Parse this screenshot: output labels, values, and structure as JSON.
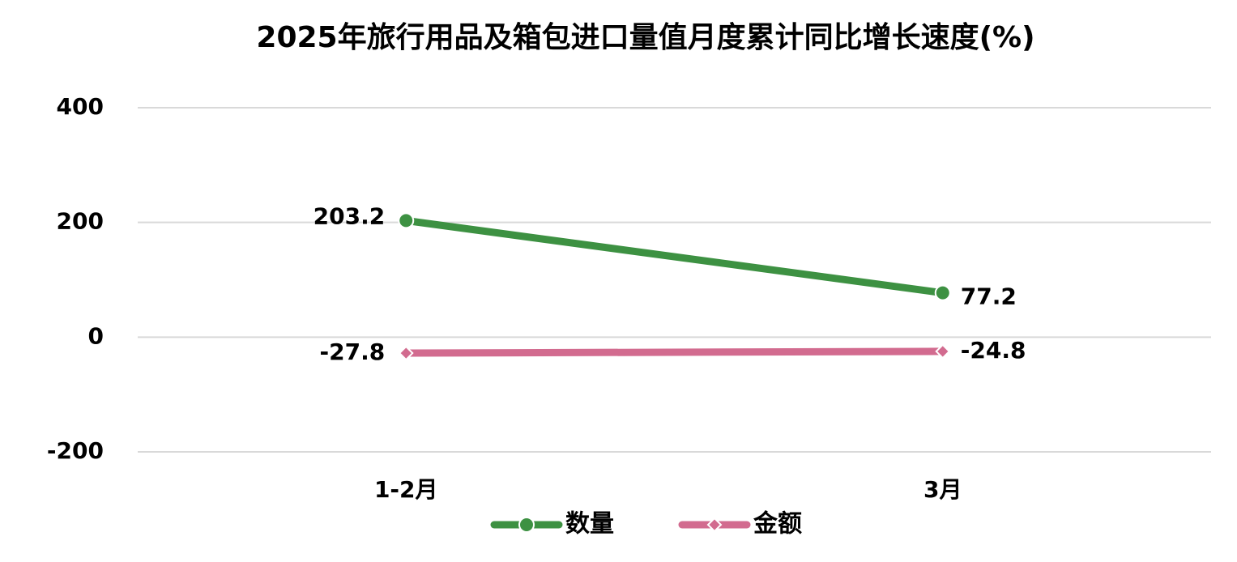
{
  "chart_data": {
    "type": "line",
    "title": "2025年旅行用品及箱包进口量值月度累计同比增长速度(%)",
    "categories": [
      "1-2月",
      "3月"
    ],
    "series": [
      {
        "name": "数量",
        "color": "#3d9142",
        "marker": "circle",
        "values": [
          203.2,
          77.2
        ]
      },
      {
        "name": "金额",
        "color": "#d26b8f",
        "marker": "diamond",
        "values": [
          -27.8,
          -24.8
        ]
      }
    ],
    "ylim": [
      -200,
      400
    ],
    "yticks": [
      -200,
      0,
      200,
      400
    ],
    "grid": true,
    "legend": "bottom"
  }
}
